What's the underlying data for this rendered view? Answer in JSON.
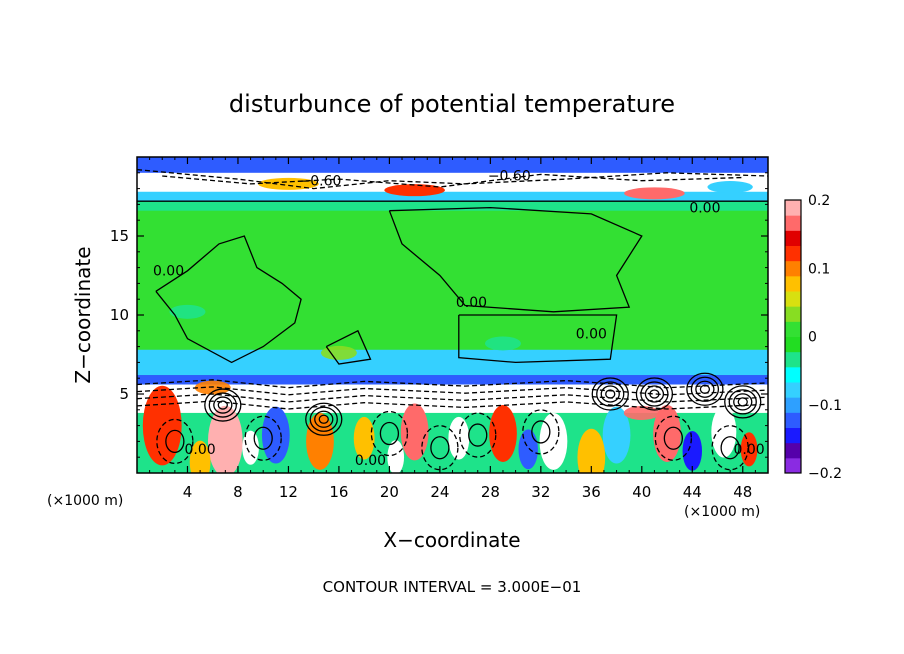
{
  "chart_data": {
    "type": "heatmap",
    "title": "disturbunce of potential temperature",
    "xlabel": "X−coordinate",
    "ylabel": "Z−coordinate",
    "x_unit": "(×1000 m)",
    "z_unit": "(×1000 m)",
    "xlim": [
      0,
      50
    ],
    "ylim": [
      0,
      20
    ],
    "x_ticks": [
      4,
      8,
      12,
      16,
      20,
      24,
      28,
      32,
      36,
      40,
      44,
      48
    ],
    "y_ticks": [
      5,
      10,
      15
    ],
    "colorbar": {
      "min": -0.2,
      "max": 0.2,
      "tick_values": [
        0.2,
        0.1,
        0,
        -0.1,
        -0.2
      ],
      "tick_labels": [
        "0.2",
        "0.1",
        "0",
        "−0.1",
        "−0.2"
      ],
      "colors": [
        "#8a2be2",
        "#5500aa",
        "#1a1aff",
        "#2e5cff",
        "#2ea0ff",
        "#35d0ff",
        "#00ffff",
        "#1ee38a",
        "#22dd22",
        "#33e033",
        "#88dd22",
        "#d8e010",
        "#ffc000",
        "#ff8000",
        "#ff3000",
        "#e00000",
        "#ff6a6a",
        "#ffb0b0"
      ]
    },
    "contour_interval": "CONTOUR INTERVAL = 3.000E−01",
    "contour_labels": [
      {
        "text": "−0.60",
        "x": 14.5,
        "z": 18.2
      },
      {
        "text": "−0.60",
        "x": 29.5,
        "z": 18.5
      },
      {
        "text": "0.00",
        "x": 45.0,
        "z": 16.5
      },
      {
        "text": "0.00",
        "x": 2.5,
        "z": 12.5
      },
      {
        "text": "0.00",
        "x": 26.5,
        "z": 10.5
      },
      {
        "text": "0.00",
        "x": 36.0,
        "z": 8.5
      },
      {
        "text": "0.00",
        "x": 18.5,
        "z": 0.5
      },
      {
        "text": "0.00",
        "x": 5.0,
        "z": 1.2
      },
      {
        "text": "0.00",
        "x": 48.5,
        "z": 1.2
      }
    ]
  }
}
